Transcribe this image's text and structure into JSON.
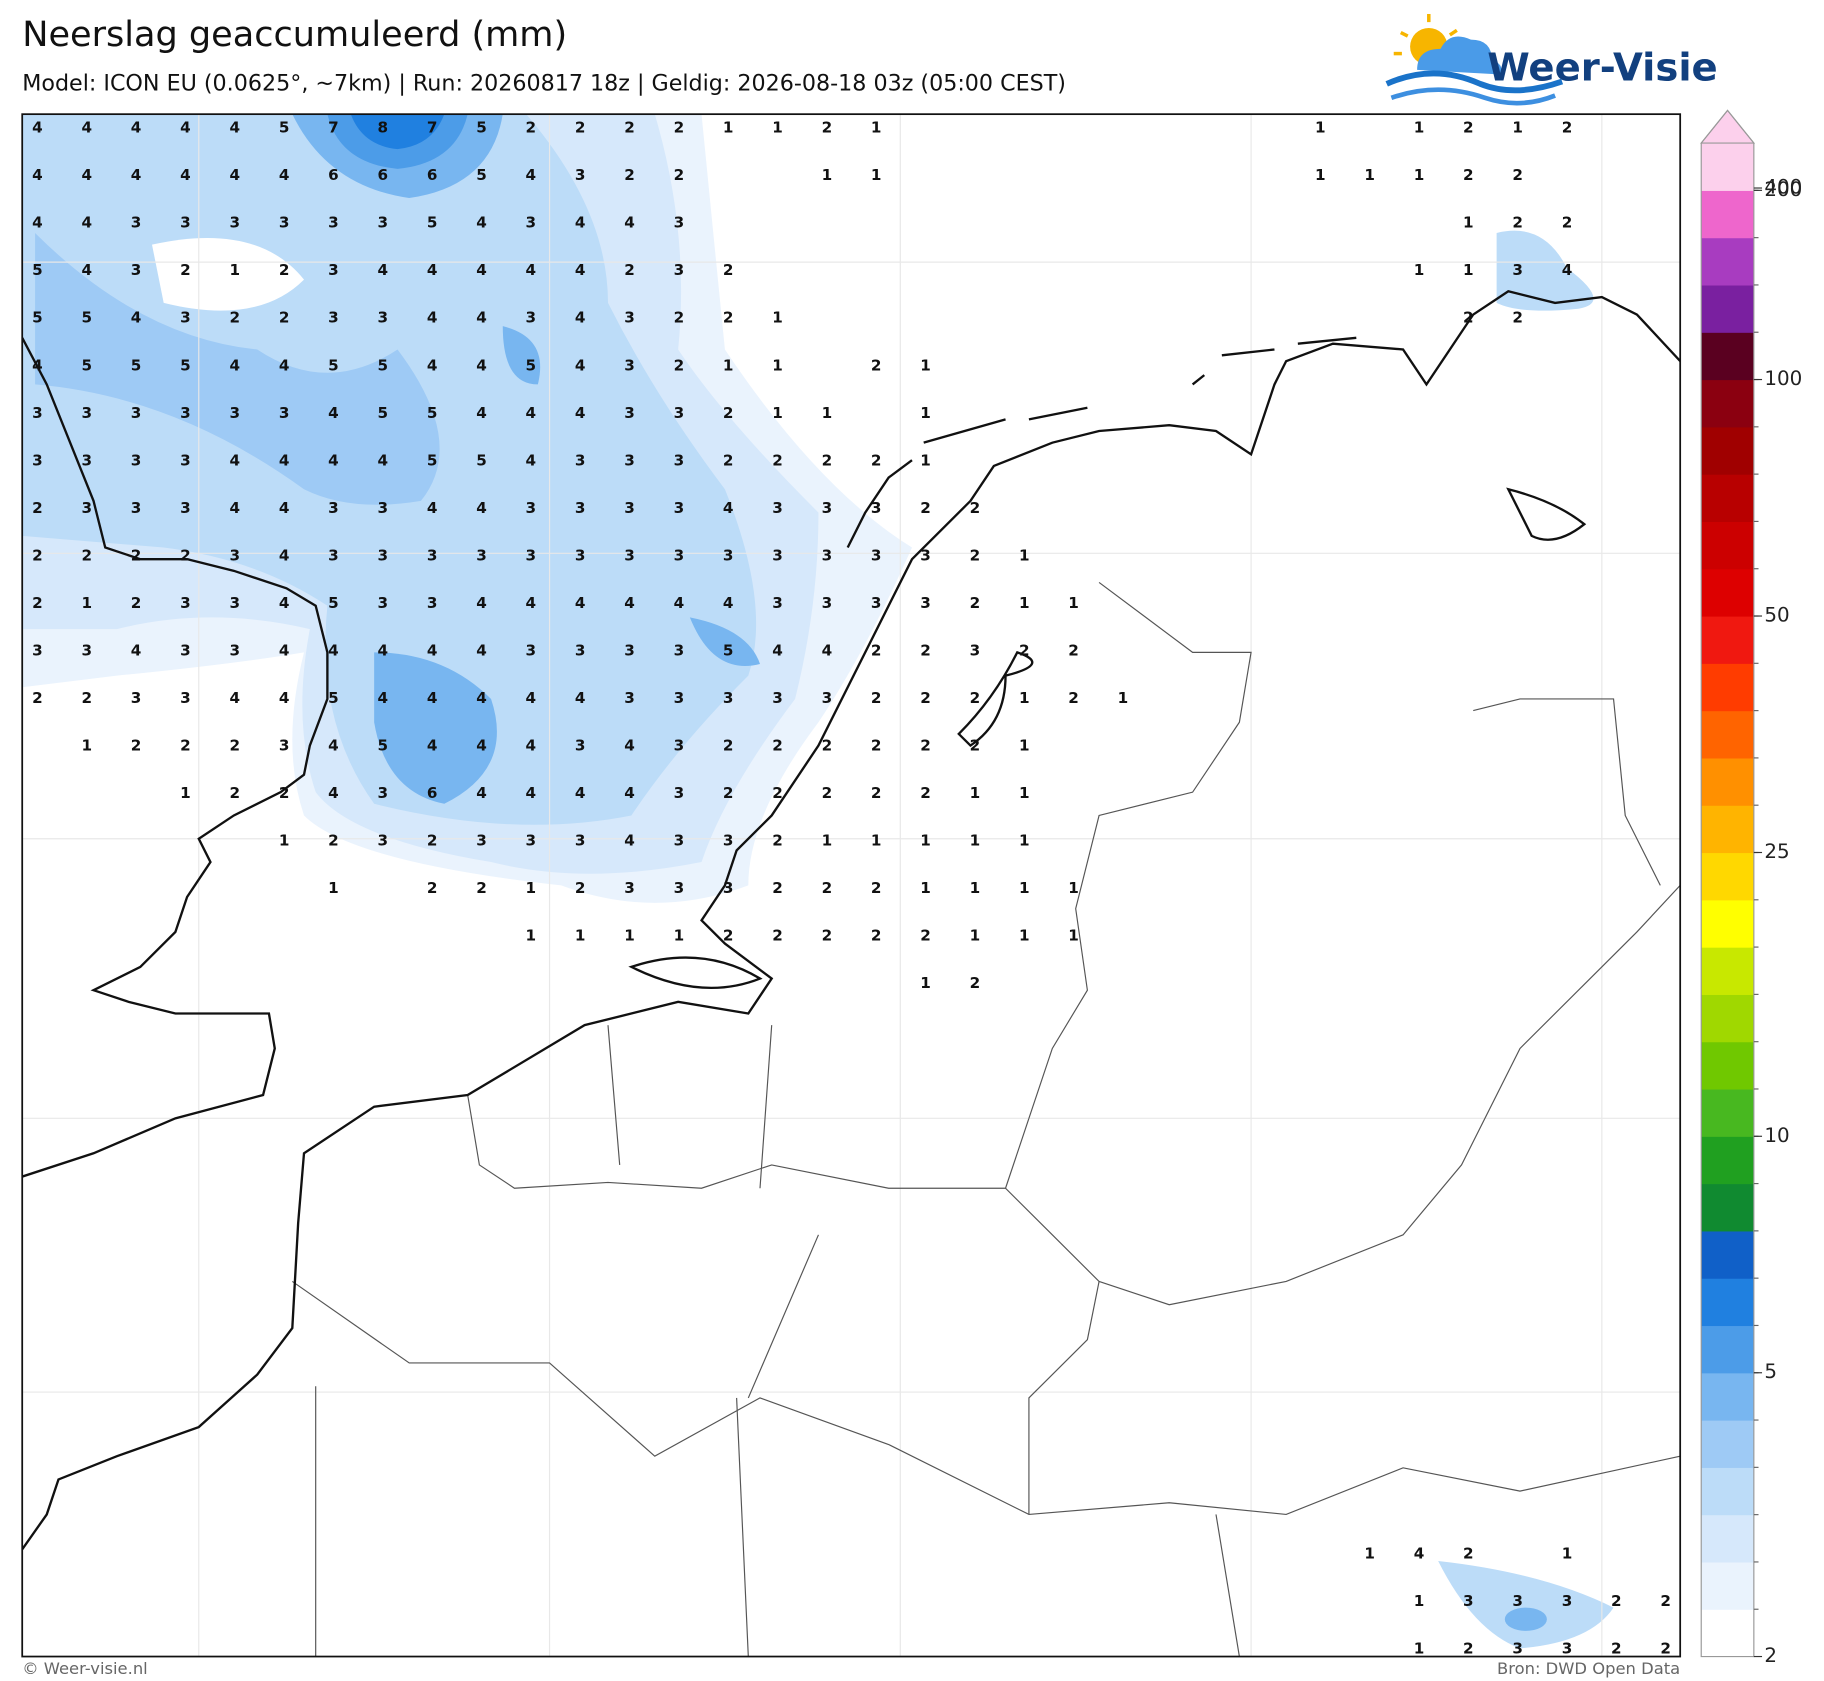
{
  "header": {
    "title": "Neerslag geaccumuleerd (mm)",
    "subtitle": "Model: ICON EU (0.0625°, ~7km) | Run: 20260817 18z | Geldig: 2026-08-18 03z (05:00 CEST)",
    "logo": "Weer-Visie"
  },
  "map": {
    "values": [
      [
        4,
        4,
        4,
        4,
        4,
        5,
        7,
        8,
        7,
        5,
        2,
        2,
        2,
        2,
        1,
        1,
        2,
        1,
        null,
        null,
        null,
        null,
        null,
        null,
        null,
        null,
        1,
        null,
        1,
        2,
        1,
        2
      ],
      [
        4,
        4,
        4,
        4,
        4,
        4,
        6,
        6,
        6,
        5,
        4,
        3,
        2,
        2,
        null,
        null,
        1,
        1,
        null,
        null,
        null,
        null,
        null,
        null,
        null,
        null,
        1,
        1,
        1,
        2,
        2
      ],
      [
        4,
        4,
        3,
        3,
        3,
        3,
        3,
        3,
        5,
        4,
        3,
        4,
        4,
        3,
        null,
        null,
        null,
        null,
        null,
        null,
        null,
        null,
        null,
        null,
        null,
        null,
        null,
        null,
        null,
        1,
        2,
        2
      ],
      [
        5,
        4,
        3,
        2,
        1,
        2,
        3,
        4,
        4,
        4,
        4,
        4,
        2,
        3,
        2,
        null,
        null,
        null,
        null,
        null,
        null,
        null,
        null,
        null,
        null,
        null,
        null,
        null,
        1,
        1,
        3,
        4
      ],
      [
        5,
        5,
        4,
        3,
        2,
        2,
        3,
        3,
        4,
        4,
        3,
        4,
        3,
        2,
        2,
        1,
        null,
        null,
        null,
        null,
        null,
        null,
        null,
        null,
        null,
        null,
        null,
        null,
        null,
        2,
        2
      ],
      [
        4,
        5,
        5,
        5,
        4,
        4,
        5,
        5,
        4,
        4,
        5,
        4,
        3,
        2,
        1,
        1,
        null,
        2,
        1
      ],
      [
        3,
        3,
        3,
        3,
        3,
        3,
        4,
        5,
        5,
        4,
        4,
        4,
        3,
        3,
        2,
        1,
        1,
        null,
        1
      ],
      [
        3,
        3,
        3,
        3,
        4,
        4,
        4,
        4,
        5,
        5,
        4,
        3,
        3,
        3,
        2,
        2,
        2,
        2,
        1
      ],
      [
        2,
        3,
        3,
        3,
        4,
        4,
        3,
        3,
        4,
        4,
        3,
        3,
        3,
        3,
        4,
        3,
        3,
        3,
        2,
        2
      ],
      [
        2,
        2,
        2,
        2,
        3,
        4,
        3,
        3,
        3,
        3,
        3,
        3,
        3,
        3,
        3,
        3,
        3,
        3,
        3,
        2,
        1
      ],
      [
        2,
        1,
        2,
        3,
        3,
        4,
        5,
        3,
        3,
        4,
        4,
        4,
        4,
        4,
        4,
        3,
        3,
        3,
        3,
        2,
        1,
        1
      ],
      [
        3,
        3,
        4,
        3,
        3,
        4,
        4,
        4,
        4,
        4,
        3,
        3,
        3,
        3,
        5,
        4,
        4,
        2,
        2,
        3,
        2,
        2
      ],
      [
        2,
        2,
        3,
        3,
        4,
        4,
        5,
        4,
        4,
        4,
        4,
        4,
        3,
        3,
        3,
        3,
        3,
        2,
        2,
        2,
        1,
        2,
        1
      ],
      [
        null,
        1,
        2,
        2,
        2,
        3,
        4,
        5,
        4,
        4,
        4,
        3,
        4,
        3,
        2,
        2,
        2,
        2,
        2,
        2,
        1
      ],
      [
        null,
        null,
        null,
        1,
        2,
        2,
        4,
        3,
        6,
        4,
        4,
        4,
        4,
        3,
        2,
        2,
        2,
        2,
        2,
        1,
        1
      ],
      [
        null,
        null,
        null,
        null,
        null,
        1,
        2,
        3,
        2,
        3,
        3,
        3,
        4,
        3,
        3,
        2,
        1,
        1,
        1,
        1,
        1
      ],
      [
        null,
        null,
        null,
        null,
        null,
        null,
        1,
        null,
        2,
        2,
        1,
        2,
        3,
        3,
        3,
        2,
        2,
        2,
        1,
        1,
        1,
        1
      ],
      [
        null,
        null,
        null,
        null,
        null,
        null,
        null,
        null,
        null,
        null,
        1,
        1,
        1,
        1,
        2,
        2,
        2,
        2,
        2,
        1,
        1,
        1
      ],
      [
        null,
        null,
        null,
        null,
        null,
        null,
        null,
        null,
        null,
        null,
        null,
        null,
        null,
        null,
        null,
        null,
        null,
        null,
        1,
        2
      ],
      [],
      [],
      [],
      [],
      [],
      [],
      [],
      [],
      [],
      [],
      [],
      [
        null,
        null,
        null,
        null,
        null,
        null,
        null,
        null,
        null,
        null,
        null,
        null,
        null,
        null,
        null,
        null,
        null,
        null,
        null,
        null,
        null,
        null,
        null,
        null,
        null,
        null,
        null,
        1,
        4,
        2,
        null,
        1
      ],
      [
        null,
        null,
        null,
        null,
        null,
        null,
        null,
        null,
        null,
        null,
        null,
        null,
        null,
        null,
        null,
        null,
        null,
        null,
        null,
        null,
        null,
        null,
        null,
        null,
        null,
        null,
        null,
        null,
        1,
        3,
        3,
        3,
        2,
        2
      ],
      [
        null,
        null,
        null,
        null,
        null,
        null,
        null,
        null,
        null,
        null,
        null,
        null,
        null,
        null,
        null,
        null,
        null,
        null,
        null,
        null,
        null,
        null,
        null,
        null,
        null,
        null,
        null,
        null,
        1,
        2,
        3,
        3,
        2,
        2
      ]
    ]
  },
  "colorbar": {
    "ticks": [
      2,
      5,
      10,
      25,
      50,
      100,
      200,
      400
    ],
    "colors": [
      "#ffffff",
      "#eaf3fd",
      "#d6e8fb",
      "#bcdcf8",
      "#9ecaf5",
      "#78b6f0",
      "#4c9ce8",
      "#2080e0",
      "#1060c8",
      "#108a30",
      "#20a020",
      "#48b820",
      "#70c800",
      "#a0d800",
      "#c8e800",
      "#ffff00",
      "#ffd800",
      "#ffb400",
      "#ff9000",
      "#ff6400",
      "#ff3c00",
      "#f01810",
      "#dd0000",
      "#cc0000",
      "#b80000",
      "#a00000",
      "#8b0010",
      "#5a0020",
      "#7a20a0",
      "#a83cc0",
      "#ee66cc",
      "#fcd0ec"
    ]
  },
  "footer": {
    "left": "© Weer-visie.nl",
    "right": "Bron: DWD Open Data"
  }
}
